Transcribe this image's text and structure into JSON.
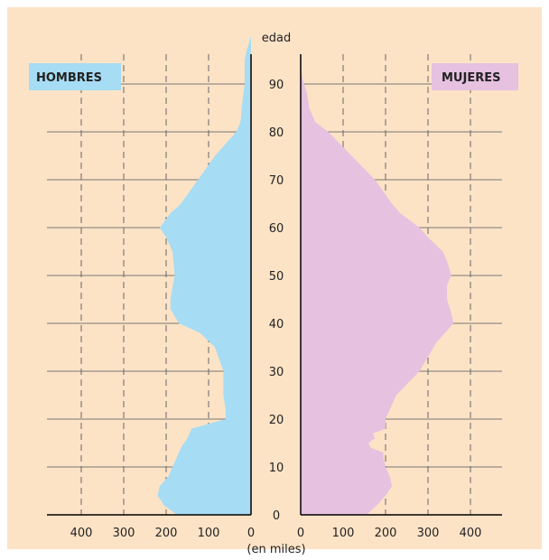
{
  "chart_data": {
    "type": "area",
    "center_axis_label": "edad",
    "xlabel": "(en miles)",
    "age_range": [
      0,
      100
    ],
    "age_ticks": [
      0,
      10,
      20,
      30,
      40,
      50,
      60,
      70,
      80,
      90
    ],
    "x_ticks_left": [
      "400",
      "300",
      "200",
      "100",
      "0"
    ],
    "x_ticks_right": [
      "0",
      "100",
      "200",
      "300",
      "400"
    ],
    "x_tick_values": [
      400,
      300,
      200,
      100,
      0
    ],
    "xlim": [
      0,
      470
    ],
    "grid": true,
    "colors": {
      "background": "#fde3c6",
      "hombres": "#a6dcf4",
      "mujeres": "#e6c1e0"
    },
    "series": [
      {
        "name": "HOMBRES",
        "legend_position": "top-left",
        "ages": [
          0,
          2,
          4,
          6,
          8,
          10,
          12,
          14,
          16,
          18,
          19,
          20,
          22,
          25,
          30,
          35,
          38,
          40,
          43,
          45,
          50,
          55,
          58,
          60,
          63,
          65,
          70,
          75,
          80,
          82,
          85,
          88,
          90,
          92,
          95,
          97,
          100
        ],
        "values": [
          175,
          205,
          220,
          215,
          195,
          185,
          175,
          165,
          150,
          140,
          100,
          60,
          60,
          65,
          65,
          85,
          120,
          170,
          190,
          190,
          180,
          185,
          200,
          215,
          190,
          165,
          125,
          85,
          35,
          25,
          22,
          18,
          15,
          15,
          15,
          10,
          0
        ]
      },
      {
        "name": "MUJERES",
        "legend_position": "top-right",
        "ages": [
          0,
          2,
          4,
          6,
          8,
          10,
          12,
          13,
          14,
          15,
          16,
          17,
          18,
          20,
          25,
          30,
          33,
          36,
          40,
          42,
          45,
          48,
          50,
          53,
          55,
          58,
          60,
          63,
          65,
          70,
          75,
          80,
          82,
          85,
          88,
          90,
          93
        ],
        "values": [
          155,
          180,
          200,
          215,
          210,
          200,
          195,
          195,
          165,
          160,
          175,
          170,
          200,
          200,
          225,
          280,
          300,
          320,
          360,
          355,
          345,
          345,
          355,
          345,
          335,
          300,
          280,
          235,
          215,
          175,
          120,
          65,
          35,
          20,
          15,
          8,
          0
        ]
      }
    ]
  }
}
